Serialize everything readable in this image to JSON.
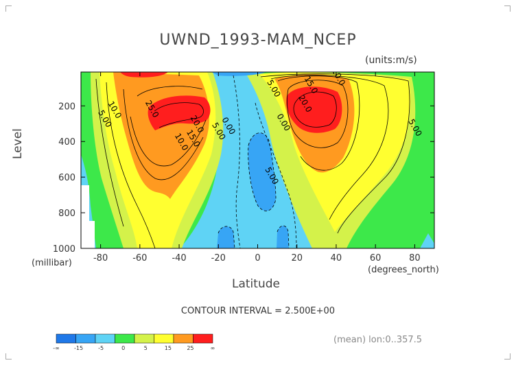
{
  "chart_data": {
    "type": "heatmap",
    "title": "UWND_1993-MAM_NCEP",
    "units": "(units:m/s)",
    "ylabel": "Level",
    "yunit": "(millibar)",
    "xlabel": "Latitude",
    "xunit": "(degrees_north)",
    "xlim": [
      -90,
      90
    ],
    "ylim": [
      1000,
      10
    ],
    "xticks": [
      "-80",
      "-60",
      "-40",
      "-20",
      "0",
      "20",
      "40",
      "60",
      "80"
    ],
    "yticks": [
      "200",
      "400",
      "600",
      "800",
      "1000"
    ],
    "contour_interval_text": "CONTOUR INTERVAL = 2.500E+00",
    "colorbar": {
      "levels": [
        "-∞",
        "-15",
        "-5",
        "0",
        "5",
        "15",
        "25",
        "∞"
      ],
      "colors": [
        "#1f78e8",
        "#37a5f5",
        "#5fd3f5",
        "#3de84a",
        "#d4f24a",
        "#ffff30",
        "#ff9a20",
        "#ff1e1e"
      ]
    },
    "jets": [
      {
        "lat": -29,
        "level": 180,
        "max_label": "25.0"
      },
      {
        "lat": 30,
        "level": 185,
        "max_label": "20.0"
      }
    ],
    "contour_labels": [
      {
        "text": "10.0",
        "lat": -74,
        "level": 230
      },
      {
        "text": "5.00",
        "lat": -79,
        "level": 280
      },
      {
        "text": "25.0",
        "lat": -55,
        "level": 225
      },
      {
        "text": "20.0",
        "lat": -32,
        "level": 310
      },
      {
        "text": "15.0",
        "lat": -34,
        "level": 390
      },
      {
        "text": "10.0",
        "lat": -40,
        "level": 410
      },
      {
        "text": "5.00",
        "lat": -21,
        "level": 350
      },
      {
        "text": "0.00",
        "lat": -16,
        "level": 320
      },
      {
        "text": "5.00",
        "lat": 6,
        "level": 600
      },
      {
        "text": "5.00",
        "lat": 7,
        "level": 110
      },
      {
        "text": "0.00",
        "lat": 12,
        "level": 300
      },
      {
        "text": "15.0",
        "lat": 26,
        "level": 90
      },
      {
        "text": "10.0",
        "lat": 40,
        "level": 45
      },
      {
        "text": "20.0",
        "lat": 23,
        "level": 195
      },
      {
        "text": "5.00",
        "lat": 79,
        "level": 330
      }
    ],
    "contour_data": [
      [
        -90,
        10,
        12.5
      ],
      [
        -60,
        10,
        30.0
      ],
      [
        -29,
        180,
        30.0
      ],
      [
        30,
        185,
        27.5
      ],
      [
        6,
        600,
        -7.5
      ],
      [
        -10,
        950,
        -5.0
      ],
      [
        12,
        950,
        -5.0
      ]
    ]
  },
  "footer": {
    "meaninfo": "(mean) lon:0..357.5"
  }
}
